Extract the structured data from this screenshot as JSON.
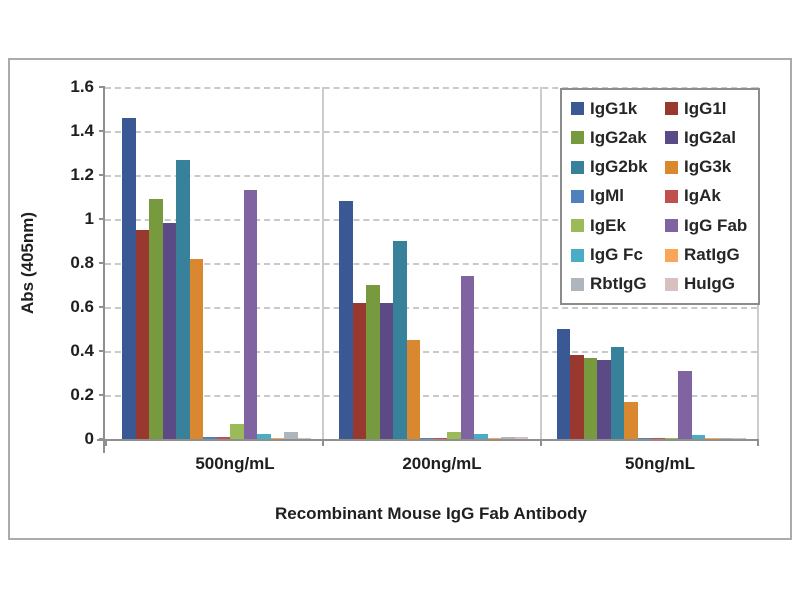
{
  "chart_data": {
    "type": "bar",
    "title": "",
    "xlabel": "Recombinant Mouse IgG Fab Antibody",
    "ylabel": "Abs (405nm)",
    "ylim": [
      0,
      1.6
    ],
    "ytick_labels": [
      "1.6",
      "1.4",
      "1.2",
      "1",
      "0.8",
      "0.6",
      "0.4",
      "0.2",
      "0"
    ],
    "ytick_values": [
      1.6,
      1.4,
      1.2,
      1.0,
      0.8,
      0.6,
      0.4,
      0.2,
      0
    ],
    "grid": "horizontal-dashed",
    "legend_position": "top-right-inside",
    "categories": [
      "500ng/mL",
      "200ng/mL",
      "50ng/mL"
    ],
    "series": [
      {
        "name": "IgG1k",
        "color": "#3A5894",
        "values": [
          1.46,
          1.08,
          0.5
        ]
      },
      {
        "name": "IgG1l",
        "color": "#99382E",
        "values": [
          0.95,
          0.62,
          0.38
        ]
      },
      {
        "name": "IgG2ak",
        "color": "#789A3E",
        "values": [
          1.09,
          0.7,
          0.37
        ]
      },
      {
        "name": "IgG2al",
        "color": "#5C4A87",
        "values": [
          0.98,
          0.62,
          0.36
        ]
      },
      {
        "name": "IgG2bk",
        "color": "#37819B",
        "values": [
          1.27,
          0.9,
          0.42
        ]
      },
      {
        "name": "IgG3k",
        "color": "#D9882F",
        "values": [
          0.82,
          0.45,
          0.17
        ]
      },
      {
        "name": "IgMl",
        "color": "#4F81BD",
        "values": [
          0.01,
          0.005,
          0.005
        ]
      },
      {
        "name": "IgAk",
        "color": "#C0504D",
        "values": [
          0.01,
          0.005,
          0.005
        ]
      },
      {
        "name": "IgEk",
        "color": "#9BBB59",
        "values": [
          0.07,
          0.03,
          0.005
        ]
      },
      {
        "name": "IgG Fab",
        "color": "#8064A2",
        "values": [
          1.13,
          0.74,
          0.31
        ]
      },
      {
        "name": "IgG Fc",
        "color": "#4BACC6",
        "values": [
          0.025,
          0.025,
          0.02
        ]
      },
      {
        "name": "RatIgG",
        "color": "#F9A65A",
        "values": [
          0.005,
          0.005,
          0.003
        ]
      },
      {
        "name": "RbtIgG",
        "color": "#AFB5BD",
        "values": [
          0.03,
          0.01,
          0.005
        ]
      },
      {
        "name": "HuIgG",
        "color": "#D8C0C0",
        "values": [
          0.005,
          0.01,
          0.003
        ]
      }
    ]
  }
}
